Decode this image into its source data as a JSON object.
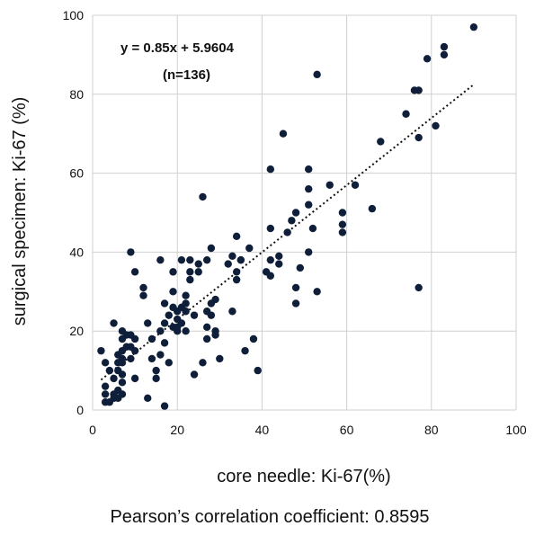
{
  "chart_data": {
    "type": "scatter",
    "xlabel": "core needle: Ki-67(%)",
    "ylabel": "surgical specimen: Ki-67 (%)",
    "xlim": [
      0,
      100
    ],
    "ylim": [
      0,
      100
    ],
    "x_ticks": [
      0,
      20,
      40,
      60,
      80,
      100
    ],
    "y_ticks": [
      0,
      20,
      40,
      60,
      80,
      100
    ],
    "x_tick_labels": [
      "0",
      "20",
      "40",
      "60",
      "80",
      "100"
    ],
    "y_tick_labels": [
      "0",
      "20",
      "40",
      "60",
      "80",
      "100"
    ],
    "grid": true,
    "legend": "none",
    "point_color": "#0f1f3a",
    "trendline": {
      "slope": 0.85,
      "intercept": 5.9604,
      "x_range": [
        2,
        90
      ],
      "style": "dotted",
      "color": "#111111"
    },
    "annotations": {
      "equation": "y = 0.85x + 5.9604",
      "n": "(n=136)"
    },
    "points": [
      [
        2,
        15
      ],
      [
        3,
        12
      ],
      [
        3,
        6
      ],
      [
        3,
        4
      ],
      [
        3,
        2
      ],
      [
        4,
        2
      ],
      [
        4,
        10
      ],
      [
        5,
        22
      ],
      [
        5,
        8
      ],
      [
        5,
        3
      ],
      [
        5,
        4
      ],
      [
        6,
        14
      ],
      [
        6,
        12
      ],
      [
        6,
        10
      ],
      [
        6,
        5
      ],
      [
        6,
        3
      ],
      [
        7,
        20
      ],
      [
        7,
        18
      ],
      [
        7,
        15
      ],
      [
        7,
        13
      ],
      [
        7,
        12
      ],
      [
        7,
        9
      ],
      [
        7,
        7
      ],
      [
        7,
        4
      ],
      [
        8,
        16
      ],
      [
        8,
        19
      ],
      [
        9,
        40
      ],
      [
        9,
        16
      ],
      [
        9,
        13
      ],
      [
        9,
        19
      ],
      [
        10,
        35
      ],
      [
        10,
        18
      ],
      [
        10,
        15
      ],
      [
        10,
        8
      ],
      [
        12,
        31
      ],
      [
        12,
        29
      ],
      [
        13,
        22
      ],
      [
        13,
        3
      ],
      [
        14,
        13
      ],
      [
        15,
        10
      ],
      [
        15,
        8
      ],
      [
        16,
        38
      ],
      [
        16,
        20
      ],
      [
        16,
        14
      ],
      [
        17,
        27
      ],
      [
        17,
        22
      ],
      [
        17,
        17
      ],
      [
        17,
        1
      ],
      [
        18,
        12
      ],
      [
        19,
        35
      ],
      [
        19,
        30
      ],
      [
        19,
        26
      ],
      [
        19,
        21
      ],
      [
        20,
        25
      ],
      [
        20,
        23
      ],
      [
        20,
        20
      ],
      [
        21,
        38
      ],
      [
        21,
        26
      ],
      [
        21,
        22
      ],
      [
        22,
        29
      ],
      [
        22,
        27
      ],
      [
        22,
        25
      ],
      [
        22,
        20
      ],
      [
        23,
        38
      ],
      [
        23,
        35
      ],
      [
        23,
        33
      ],
      [
        24,
        24
      ],
      [
        24,
        9
      ],
      [
        25,
        37
      ],
      [
        25,
        35
      ],
      [
        26,
        54
      ],
      [
        26,
        12
      ],
      [
        27,
        25
      ],
      [
        27,
        21
      ],
      [
        27,
        18
      ],
      [
        27,
        38
      ],
      [
        28,
        41
      ],
      [
        28,
        24
      ],
      [
        29,
        28
      ],
      [
        29,
        20
      ],
      [
        29,
        19
      ],
      [
        30,
        13
      ],
      [
        32,
        37
      ],
      [
        33,
        39
      ],
      [
        33,
        25
      ],
      [
        34,
        44
      ],
      [
        34,
        35
      ],
      [
        34,
        33
      ],
      [
        35,
        38
      ],
      [
        35,
        38
      ],
      [
        36,
        15
      ],
      [
        37,
        41
      ],
      [
        38,
        18
      ],
      [
        39,
        10
      ],
      [
        41,
        35
      ],
      [
        42,
        61
      ],
      [
        42,
        46
      ],
      [
        42,
        38
      ],
      [
        42,
        34
      ],
      [
        44,
        39
      ],
      [
        45,
        70
      ],
      [
        46,
        45
      ],
      [
        47,
        48
      ],
      [
        48,
        50
      ],
      [
        48,
        31
      ],
      [
        48,
        27
      ],
      [
        49,
        36
      ],
      [
        51,
        61
      ],
      [
        51,
        56
      ],
      [
        51,
        52
      ],
      [
        51,
        40
      ],
      [
        52,
        46
      ],
      [
        53,
        85
      ],
      [
        53,
        30
      ],
      [
        56,
        57
      ],
      [
        59,
        50
      ],
      [
        59,
        47
      ],
      [
        59,
        45
      ],
      [
        62,
        57
      ],
      [
        66,
        51
      ],
      [
        68,
        68
      ],
      [
        74,
        75
      ],
      [
        76,
        81
      ],
      [
        77,
        81
      ],
      [
        77,
        69
      ],
      [
        77,
        31
      ],
      [
        79,
        89
      ],
      [
        81,
        72
      ],
      [
        83,
        92
      ],
      [
        83,
        90
      ],
      [
        90,
        97
      ],
      [
        44,
        37
      ],
      [
        20,
        21
      ],
      [
        28,
        27
      ],
      [
        18,
        24
      ],
      [
        14,
        18
      ]
    ]
  },
  "footer": {
    "caption": "Pearson’s correlation coefficient: 0.8595"
  }
}
